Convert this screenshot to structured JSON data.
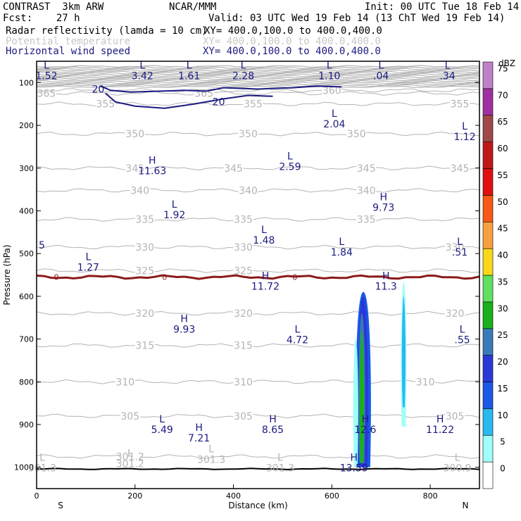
{
  "header": {
    "title": "CONTRAST  3km ARW",
    "center": "NCAR/MMM",
    "init": "Init: 00 UTC Tue 18 Feb 14",
    "fcst": "Fcst:    27 h",
    "valid": "Valid: 03 UTC Wed 19 Feb 14 (13 ChT Wed 19 Feb 14)",
    "field1_name": "Radar reflectivity (lamda = 10 cm)",
    "field1_xy": "XY= 400.0,100.0 to 400.0,400.0",
    "field2_name": "Potential temperature",
    "field2_xy": "XY= 400.0,100.0 to 400.0,400.0",
    "field3_name": "Horizontal wind speed",
    "field3_xy": "XY= 400.0,100.0 to 400.0,400.0",
    "colors": {
      "text": "#000000",
      "field2": "#c8c8c8",
      "field3": "#1a1a80"
    }
  },
  "chart_data": {
    "type": "cross-section",
    "xlabel": "Distance (km)",
    "ylabel": "Pressure (hPa)",
    "xlim": [
      0,
      900
    ],
    "ylim": [
      1050,
      50
    ],
    "x_ticks": [
      0,
      200,
      400,
      600,
      800
    ],
    "y_ticks": [
      100,
      200,
      300,
      400,
      500,
      600,
      700,
      800,
      900,
      1000
    ],
    "x_end_labels": {
      "left": "S",
      "right": "N"
    },
    "colorbar": {
      "unit": "dBZ",
      "levels": [
        0,
        5,
        10,
        15,
        20,
        25,
        30,
        35,
        40,
        45,
        50,
        55,
        60,
        65,
        70,
        75
      ],
      "colors": [
        "#ffffff",
        "#a0fff8",
        "#2ab8f0",
        "#1a58e8",
        "#2a38d8",
        "#3a7ab8",
        "#1ab01a",
        "#60e060",
        "#f8d818",
        "#f8a040",
        "#f85818",
        "#e01010",
        "#c01818",
        "#a04848",
        "#a030a0",
        "#c080c8"
      ]
    },
    "theta_contours": [
      {
        "label": "365",
        "p": 125,
        "label_x": [
          20,
          340
        ]
      },
      {
        "label": "360",
        "p": 118,
        "label_x": [
          600
        ]
      },
      {
        "label": "355",
        "p": 150,
        "label_x": [
          140,
          440,
          860
        ]
      },
      {
        "label": "350",
        "p": 220,
        "label_x": [
          200,
          430,
          650
        ]
      },
      {
        "label": "345",
        "p": 300,
        "label_x": [
          200,
          400,
          670,
          860
        ]
      },
      {
        "label": "340",
        "p": 352,
        "label_x": [
          210,
          430,
          670
        ]
      },
      {
        "label": "335",
        "p": 420,
        "label_x": [
          220,
          420,
          670
        ]
      },
      {
        "label": "330",
        "p": 485,
        "label_x": [
          220,
          420,
          850
        ]
      },
      {
        "label": "325",
        "p": 540,
        "label_x": [
          220,
          420
        ]
      },
      {
        "label": "320",
        "p": 640,
        "label_x": [
          220,
          420,
          850
        ]
      },
      {
        "label": "315",
        "p": 715,
        "label_x": [
          220,
          420
        ]
      },
      {
        "label": "310",
        "p": 800,
        "label_x": [
          180,
          420,
          790
        ]
      },
      {
        "label": "305",
        "p": 880,
        "label_x": [
          190,
          420,
          850
        ]
      },
      {
        "label": "301.2",
        "p": 975,
        "label_x": [
          190
        ]
      }
    ],
    "zero_wind_line": {
      "label": "0",
      "p": 555,
      "label_x": [
        40,
        260,
        525
      ]
    },
    "wind_20_contour": {
      "label": "20"
    },
    "extrema": [
      {
        "type": "L",
        "value": "1.52",
        "x": 20,
        "p": 72
      },
      {
        "type": "L",
        "value": "3.42",
        "x": 215,
        "p": 72
      },
      {
        "type": "L",
        "value": "1.61",
        "x": 310,
        "p": 72
      },
      {
        "type": "L",
        "value": "2.28",
        "x": 420,
        "p": 72
      },
      {
        "type": "L",
        "value": "1.10",
        "x": 595,
        "p": 72
      },
      {
        "type": "L",
        "value": ".04",
        "x": 700,
        "p": 72
      },
      {
        "type": "L",
        "value": ".34",
        "x": 835,
        "p": 72
      },
      {
        "type": "L",
        "value": "2.04",
        "x": 605,
        "p": 185
      },
      {
        "type": "L",
        "value": "1.12",
        "x": 870,
        "p": 215
      },
      {
        "type": "L",
        "value": "2.59",
        "x": 515,
        "p": 285
      },
      {
        "type": "H",
        "value": "11.63",
        "x": 235,
        "p": 295
      },
      {
        "type": "H",
        "value": "9.73",
        "x": 705,
        "p": 380
      },
      {
        "type": "L",
        "value": "1.92",
        "x": 280,
        "p": 398
      },
      {
        "type": "L",
        "value": "1.48",
        "x": 462,
        "p": 457
      },
      {
        "type": "L",
        "value": "1.84",
        "x": 620,
        "p": 485
      },
      {
        "type": "L",
        "value": ".51",
        "x": 860,
        "p": 485
      },
      {
        "type": "L",
        "value": "1.27",
        "x": 105,
        "p": 520
      },
      {
        "type": "H",
        "value": "11.72",
        "x": 465,
        "p": 565
      },
      {
        "type": "H",
        "value": "11.3",
        "x": 710,
        "p": 565
      },
      {
        "type": "H",
        "value": "9.93",
        "x": 300,
        "p": 665
      },
      {
        "type": "L",
        "value": "4.72",
        "x": 530,
        "p": 690
      },
      {
        "type": "L",
        "value": ".55",
        "x": 865,
        "p": 690
      },
      {
        "type": "H",
        "value": "12.6",
        "x": 668,
        "p": 900
      },
      {
        "type": "L",
        "value": "5.49",
        "x": 255,
        "p": 900
      },
      {
        "type": "H",
        "value": "7.21",
        "x": 330,
        "p": 920
      },
      {
        "type": "H",
        "value": "8.65",
        "x": 480,
        "p": 900
      },
      {
        "type": "H",
        "value": "11.22",
        "x": 820,
        "p": 900
      },
      {
        "type": "H",
        "value": "13.59",
        "x": 645,
        "p": 990
      },
      {
        "type": "L",
        "value": "301.3",
        "x": 0,
        "p": 990
      },
      {
        "type": "L",
        "value": "301.2",
        "x": 190,
        "p": 980
      },
      {
        "type": "L",
        "value": "301.3",
        "x": 355,
        "p": 970
      },
      {
        "type": "L",
        "value": "301.3",
        "x": 495,
        "p": 990
      },
      {
        "type": "L",
        "value": "300.9",
        "x": 855,
        "p": 990
      }
    ],
    "partial_label_left": "5",
    "partial_label_left_p": 480
  }
}
